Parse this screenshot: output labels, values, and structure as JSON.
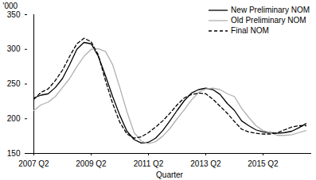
{
  "chart_data": {
    "type": "line",
    "x_label": "Quarter",
    "y_label": "'000",
    "categories": [
      "2007 Q2",
      null,
      null,
      null,
      null,
      null,
      null,
      null,
      "2009 Q2",
      null,
      null,
      null,
      null,
      null,
      null,
      null,
      "2011 Q2",
      null,
      null,
      null,
      null,
      null,
      null,
      null,
      "2013 Q2",
      null,
      null,
      null,
      null,
      null,
      null,
      null,
      "2015 Q2",
      null,
      null,
      null,
      null,
      null,
      null
    ],
    "series": [
      {
        "name": "New Preliminary NOM",
        "color": "#000000",
        "line_style": "solid",
        "values": [
          230,
          234,
          236,
          245,
          258,
          278,
          300,
          310,
          308,
          290,
          262,
          232,
          205,
          182,
          170,
          165,
          166,
          172,
          183,
          197,
          212,
          226,
          237,
          242,
          244,
          242,
          235,
          222,
          212,
          197,
          190,
          184,
          181,
          180,
          179,
          180,
          182,
          187,
          193
        ]
      },
      {
        "name": "Old Preliminary NOM",
        "color": "#b0b0b0",
        "line_style": "solid",
        "values": [
          212,
          220,
          224,
          232,
          245,
          258,
          275,
          290,
          300,
          301,
          297,
          278,
          245,
          210,
          180,
          168,
          164,
          167,
          175,
          186,
          200,
          213,
          227,
          238,
          243,
          244,
          242,
          236,
          232,
          215,
          202,
          190,
          183,
          180,
          176,
          176,
          177,
          180,
          183
        ]
      },
      {
        "name": "Final NOM",
        "color": "#000000",
        "line_style": "dashed",
        "values": [
          228,
          238,
          243,
          255,
          270,
          290,
          308,
          316,
          311,
          292,
          255,
          222,
          195,
          178,
          172,
          174,
          180,
          188,
          197,
          208,
          220,
          230,
          235,
          237,
          236,
          228,
          218,
          208,
          196,
          185,
          181,
          179,
          178,
          178,
          180,
          184,
          188,
          190,
          190
        ]
      }
    ],
    "ylim": [
      150,
      350
    ],
    "yticks": [
      150,
      200,
      250,
      300,
      350
    ],
    "grid": false,
    "legend": "top-right"
  }
}
